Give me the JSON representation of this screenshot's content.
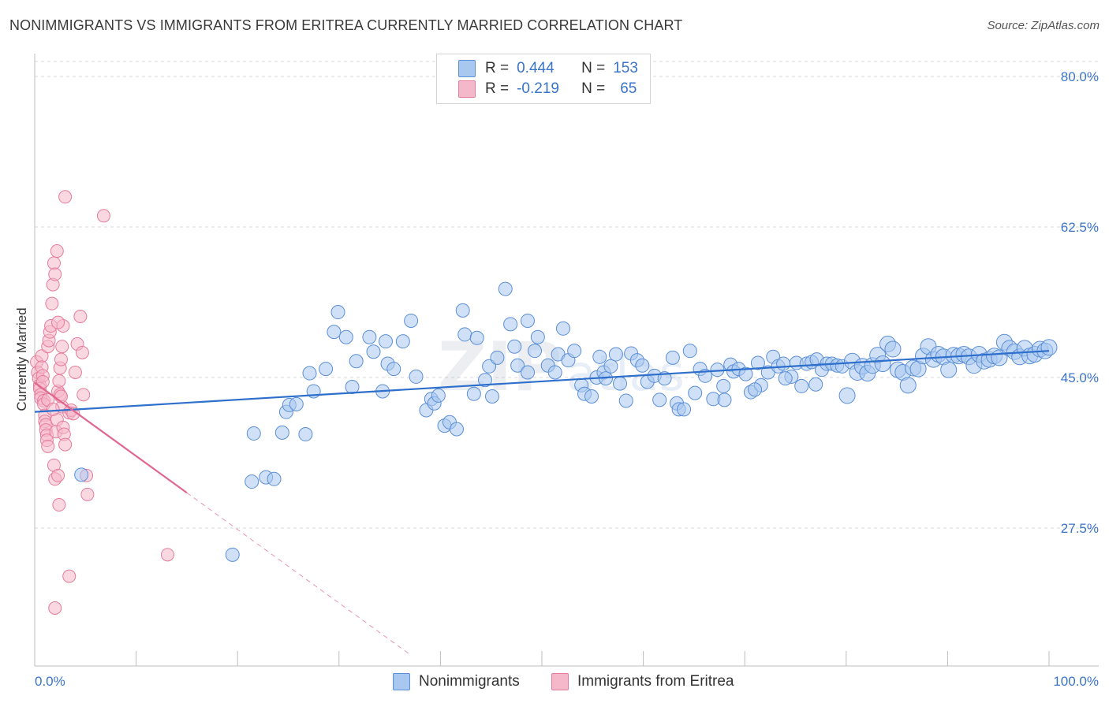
{
  "header": {
    "title": "NONIMMIGRANTS VS IMMIGRANTS FROM ERITREA CURRENTLY MARRIED CORRELATION CHART",
    "source": "Source: ZipAtlas.com"
  },
  "legend": {
    "rows": [
      {
        "r_label": "R =",
        "r_value": "0.444",
        "n_label": "N =",
        "n_value": "153",
        "color": "#a9c8f0"
      },
      {
        "r_label": "R =",
        "r_value": "-0.219",
        "n_label": "N =",
        "n_value": "65",
        "color": "#f5b8cb"
      }
    ]
  },
  "bottom_legend": {
    "items": [
      {
        "label": "Nonimmigrants",
        "color": "#a9c8f0"
      },
      {
        "label": "Immigrants from Eritrea",
        "color": "#f5b8cb"
      }
    ]
  },
  "watermark": {
    "zip": "ZIP",
    "atlas": "atlas"
  },
  "colors": {
    "blue_fill": "#a9c8f0",
    "blue_stroke": "#5b8fd6",
    "blue_line": "#2e6fcc",
    "pink_fill": "#f5b8cb",
    "pink_stroke": "#e57c9c",
    "pink_line": "#e0678f",
    "tick_label": "#3a74c9",
    "grid": "#d9d9d9"
  },
  "chart_data": {
    "type": "scatter",
    "title": "NONIMMIGRANTS VS IMMIGRANTS FROM ERITREA CURRENTLY MARRIED CORRELATION CHART",
    "xlabel": "",
    "ylabel": "Currently Married",
    "xlim": [
      0,
      100
    ],
    "ylim": [
      10,
      83
    ],
    "x_tick_labels": [
      "0.0%",
      "100.0%"
    ],
    "y_ticks": [
      27.5,
      45.0,
      62.5,
      80.0
    ],
    "y_tick_labels": [
      "27.5%",
      "45.0%",
      "62.5%",
      "80.0%"
    ],
    "grid": true,
    "legend_position": "top-center",
    "series": [
      {
        "name": "Nonimmigrants",
        "stats": {
          "R": 0.444,
          "N": 153
        },
        "trendline": {
          "x": [
            0,
            100
          ],
          "y": [
            41.0,
            48.1
          ]
        },
        "points": [
          [
            4.6,
            33.7
          ],
          [
            19.5,
            24.4
          ],
          [
            21.4,
            32.9
          ],
          [
            21.6,
            38.5
          ],
          [
            22.8,
            33.4
          ],
          [
            23.6,
            33.2
          ],
          [
            24.4,
            38.6
          ],
          [
            24.8,
            41.0
          ],
          [
            25.1,
            41.8
          ],
          [
            25.8,
            41.9
          ],
          [
            26.7,
            38.4
          ],
          [
            27.1,
            45.5
          ],
          [
            27.5,
            43.4
          ],
          [
            28.7,
            46.0
          ],
          [
            29.5,
            50.3
          ],
          [
            29.9,
            52.6
          ],
          [
            30.7,
            49.7
          ],
          [
            31.3,
            43.9
          ],
          [
            31.7,
            46.9
          ],
          [
            33.0,
            49.7
          ],
          [
            33.4,
            48.0
          ],
          [
            34.3,
            43.4
          ],
          [
            34.6,
            49.2
          ],
          [
            34.8,
            46.6
          ],
          [
            35.4,
            46.0
          ],
          [
            36.3,
            49.2
          ],
          [
            37.1,
            51.6
          ],
          [
            37.6,
            45.1
          ],
          [
            38.6,
            41.2
          ],
          [
            39.1,
            42.5
          ],
          [
            39.4,
            42.0
          ],
          [
            39.8,
            42.9
          ],
          [
            40.4,
            39.4
          ],
          [
            40.9,
            39.8
          ],
          [
            41.6,
            39.0
          ],
          [
            42.2,
            52.8
          ],
          [
            42.4,
            50.0
          ],
          [
            43.3,
            43.1
          ],
          [
            43.6,
            49.6
          ],
          [
            44.4,
            44.7
          ],
          [
            44.8,
            46.3
          ],
          [
            45.1,
            42.8
          ],
          [
            45.6,
            47.3
          ],
          [
            46.4,
            55.3
          ],
          [
            46.9,
            51.2
          ],
          [
            47.3,
            48.6
          ],
          [
            47.6,
            46.4
          ],
          [
            48.6,
            51.6
          ],
          [
            48.6,
            45.6
          ],
          [
            49.3,
            48.1
          ],
          [
            49.6,
            49.7
          ],
          [
            50.6,
            46.4
          ],
          [
            51.3,
            45.6
          ],
          [
            51.6,
            47.7
          ],
          [
            52.1,
            50.7
          ],
          [
            52.6,
            47.0
          ],
          [
            53.2,
            48.1
          ],
          [
            53.9,
            44.1
          ],
          [
            54.2,
            43.1
          ],
          [
            54.9,
            42.8
          ],
          [
            55.4,
            45.0
          ],
          [
            55.7,
            47.4
          ],
          [
            56.1,
            45.6
          ],
          [
            56.3,
            44.9
          ],
          [
            56.8,
            46.3
          ],
          [
            57.3,
            47.7
          ],
          [
            57.7,
            44.3
          ],
          [
            58.3,
            42.3
          ],
          [
            58.8,
            47.8
          ],
          [
            59.4,
            47.0
          ],
          [
            59.9,
            46.4
          ],
          [
            60.4,
            44.5
          ],
          [
            61.1,
            45.2
          ],
          [
            61.6,
            42.4
          ],
          [
            62.1,
            44.9
          ],
          [
            62.9,
            47.3
          ],
          [
            63.3,
            42.0
          ],
          [
            63.5,
            41.3
          ],
          [
            64.0,
            41.3
          ],
          [
            64.6,
            48.1
          ],
          [
            65.1,
            43.2
          ],
          [
            65.6,
            46.0
          ],
          [
            66.1,
            45.2
          ],
          [
            66.9,
            42.5
          ],
          [
            67.3,
            45.9
          ],
          [
            67.9,
            44.0
          ],
          [
            68.6,
            46.5
          ],
          [
            68.9,
            45.7
          ],
          [
            69.4,
            46.0
          ],
          [
            70.1,
            45.4
          ],
          [
            70.6,
            43.3
          ],
          [
            71.3,
            46.7
          ],
          [
            71.6,
            44.1
          ],
          [
            72.3,
            45.6
          ],
          [
            72.8,
            47.4
          ],
          [
            73.3,
            46.3
          ],
          [
            73.8,
            46.6
          ],
          [
            74.6,
            45.1
          ],
          [
            75.1,
            46.7
          ],
          [
            75.6,
            44.0
          ],
          [
            76.1,
            46.6
          ],
          [
            76.6,
            46.8
          ],
          [
            77.1,
            47.1
          ],
          [
            77.6,
            45.9
          ],
          [
            78.1,
            46.6
          ],
          [
            78.6,
            46.6
          ],
          [
            79.1,
            46.4
          ],
          [
            79.6,
            46.3
          ],
          [
            80.1,
            42.9
          ],
          [
            80.6,
            46.9
          ],
          [
            81.1,
            45.6
          ],
          [
            81.6,
            46.3
          ],
          [
            82.1,
            45.5
          ],
          [
            82.6,
            46.4
          ],
          [
            83.1,
            47.6
          ],
          [
            83.6,
            46.6
          ],
          [
            84.1,
            48.9
          ],
          [
            84.6,
            48.3
          ],
          [
            85.1,
            45.9
          ],
          [
            85.6,
            45.6
          ],
          [
            86.1,
            44.1
          ],
          [
            86.6,
            46.1
          ],
          [
            87.1,
            46.0
          ],
          [
            87.6,
            47.5
          ],
          [
            88.1,
            48.6
          ],
          [
            88.6,
            47.1
          ],
          [
            89.1,
            47.7
          ],
          [
            89.6,
            47.4
          ],
          [
            90.1,
            45.9
          ],
          [
            90.6,
            47.6
          ],
          [
            91.1,
            47.5
          ],
          [
            91.6,
            47.7
          ],
          [
            92.1,
            47.4
          ],
          [
            92.6,
            46.4
          ],
          [
            93.1,
            47.7
          ],
          [
            93.6,
            46.9
          ],
          [
            94.1,
            47.1
          ],
          [
            94.6,
            47.5
          ],
          [
            95.1,
            47.3
          ],
          [
            95.6,
            49.1
          ],
          [
            96.1,
            48.4
          ],
          [
            96.6,
            48.0
          ],
          [
            97.1,
            47.4
          ],
          [
            97.6,
            48.4
          ],
          [
            98.1,
            47.5
          ],
          [
            98.6,
            47.7
          ],
          [
            99.1,
            48.3
          ],
          [
            99.6,
            48.1
          ],
          [
            100.0,
            48.5
          ],
          [
            68.0,
            42.4
          ],
          [
            71.0,
            43.6
          ],
          [
            74.0,
            44.9
          ],
          [
            77.0,
            44.2
          ]
        ]
      },
      {
        "name": "Immigrants from Eritrea",
        "stats": {
          "R": -0.219,
          "N": 65
        },
        "trendline": {
          "x": [
            0,
            15
          ],
          "y": [
            44.4,
            31.6
          ],
          "dashed_extension": {
            "x": [
              15,
              37
            ],
            "y": [
              31.6,
              12.8
            ]
          }
        },
        "points": [
          [
            0.2,
            46.8
          ],
          [
            0.3,
            45.6
          ],
          [
            0.4,
            44.9
          ],
          [
            0.5,
            44.1
          ],
          [
            0.5,
            43.7
          ],
          [
            0.6,
            43.0
          ],
          [
            0.6,
            42.6
          ],
          [
            0.7,
            47.5
          ],
          [
            0.7,
            46.2
          ],
          [
            0.8,
            45.2
          ],
          [
            0.8,
            44.5
          ],
          [
            0.9,
            42.3
          ],
          [
            0.9,
            41.9
          ],
          [
            1.0,
            40.6
          ],
          [
            1.0,
            39.9
          ],
          [
            1.1,
            39.5
          ],
          [
            1.1,
            38.9
          ],
          [
            1.2,
            38.3
          ],
          [
            1.2,
            37.7
          ],
          [
            1.3,
            37.0
          ],
          [
            1.3,
            48.6
          ],
          [
            1.4,
            49.3
          ],
          [
            1.5,
            50.3
          ],
          [
            1.6,
            51.0
          ],
          [
            1.7,
            53.6
          ],
          [
            1.8,
            55.8
          ],
          [
            1.9,
            34.8
          ],
          [
            2.0,
            33.2
          ],
          [
            2.1,
            38.7
          ],
          [
            2.2,
            40.1
          ],
          [
            2.3,
            43.4
          ],
          [
            2.4,
            44.6
          ],
          [
            2.5,
            46.1
          ],
          [
            2.6,
            47.1
          ],
          [
            2.7,
            48.6
          ],
          [
            2.8,
            51.0
          ],
          [
            1.9,
            58.3
          ],
          [
            2.0,
            57.0
          ],
          [
            2.2,
            59.7
          ],
          [
            2.3,
            51.4
          ],
          [
            2.5,
            43.0
          ],
          [
            2.7,
            41.6
          ],
          [
            2.8,
            39.2
          ],
          [
            2.9,
            38.4
          ],
          [
            3.0,
            37.2
          ],
          [
            2.4,
            30.2
          ],
          [
            2.3,
            33.6
          ],
          [
            3.4,
            40.9
          ],
          [
            3.6,
            41.2
          ],
          [
            3.8,
            40.8
          ],
          [
            4.0,
            45.6
          ],
          [
            4.2,
            48.9
          ],
          [
            4.5,
            52.1
          ],
          [
            4.7,
            47.9
          ],
          [
            4.8,
            43.0
          ],
          [
            5.1,
            33.6
          ],
          [
            5.2,
            31.4
          ],
          [
            3.0,
            66.0
          ],
          [
            6.8,
            63.8
          ],
          [
            13.1,
            24.4
          ],
          [
            3.4,
            21.9
          ],
          [
            2.0,
            18.2
          ],
          [
            1.3,
            42.4
          ],
          [
            1.8,
            41.3
          ],
          [
            2.6,
            42.8
          ]
        ]
      }
    ]
  }
}
